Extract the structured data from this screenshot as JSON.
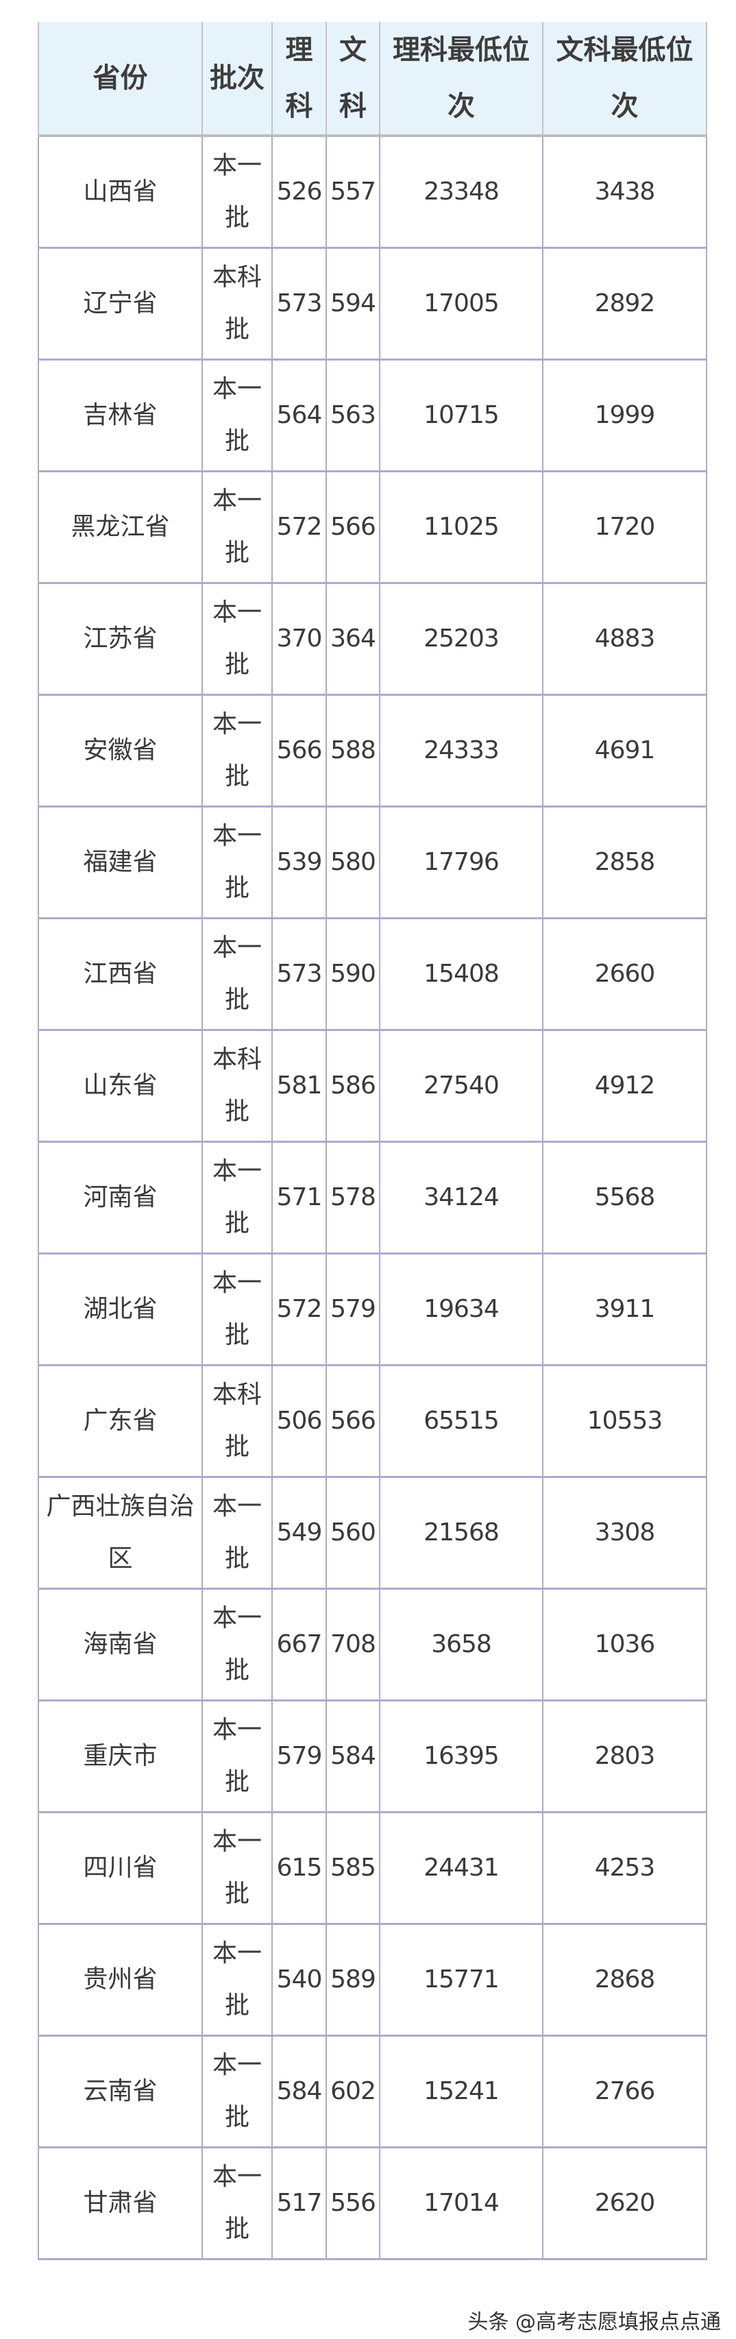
{
  "table": {
    "headers": [
      "省份",
      "批次",
      "理科",
      "文科",
      "理科最低位次",
      "文科最低位次"
    ],
    "rows": [
      [
        "山西省",
        "本一批",
        "526",
        "557",
        "23348",
        "3438"
      ],
      [
        "辽宁省",
        "本科批",
        "573",
        "594",
        "17005",
        "2892"
      ],
      [
        "吉林省",
        "本一批",
        "564",
        "563",
        "10715",
        "1999"
      ],
      [
        "黑龙江省",
        "本一批",
        "572",
        "566",
        "11025",
        "1720"
      ],
      [
        "江苏省",
        "本一批",
        "370",
        "364",
        "25203",
        "4883"
      ],
      [
        "安徽省",
        "本一批",
        "566",
        "588",
        "24333",
        "4691"
      ],
      [
        "福建省",
        "本一批",
        "539",
        "580",
        "17796",
        "2858"
      ],
      [
        "江西省",
        "本一批",
        "573",
        "590",
        "15408",
        "2660"
      ],
      [
        "山东省",
        "本科批",
        "581",
        "586",
        "27540",
        "4912"
      ],
      [
        "河南省",
        "本一批",
        "571",
        "578",
        "34124",
        "5568"
      ],
      [
        "湖北省",
        "本一批",
        "572",
        "579",
        "19634",
        "3911"
      ],
      [
        "广东省",
        "本科批",
        "506",
        "566",
        "65515",
        "10553"
      ],
      [
        "广西壮族自治区",
        "本一批",
        "549",
        "560",
        "21568",
        "3308"
      ],
      [
        "海南省",
        "本一批",
        "667",
        "708",
        "3658",
        "1036"
      ],
      [
        "重庆市",
        "本一批",
        "579",
        "584",
        "16395",
        "2803"
      ],
      [
        "四川省",
        "本一批",
        "615",
        "585",
        "24431",
        "4253"
      ],
      [
        "贵州省",
        "本一批",
        "540",
        "589",
        "15771",
        "2868"
      ],
      [
        "云南省",
        "本一批",
        "584",
        "602",
        "15241",
        "2766"
      ],
      [
        "甘肃省",
        "本一批",
        "517",
        "556",
        "17014",
        "2620"
      ]
    ]
  },
  "watermark": "头条 @高考志愿填报点点通",
  "colors": {
    "header_bg": "#e7f3fb",
    "border": "#aeaacb",
    "text": "#3a3a3a"
  }
}
